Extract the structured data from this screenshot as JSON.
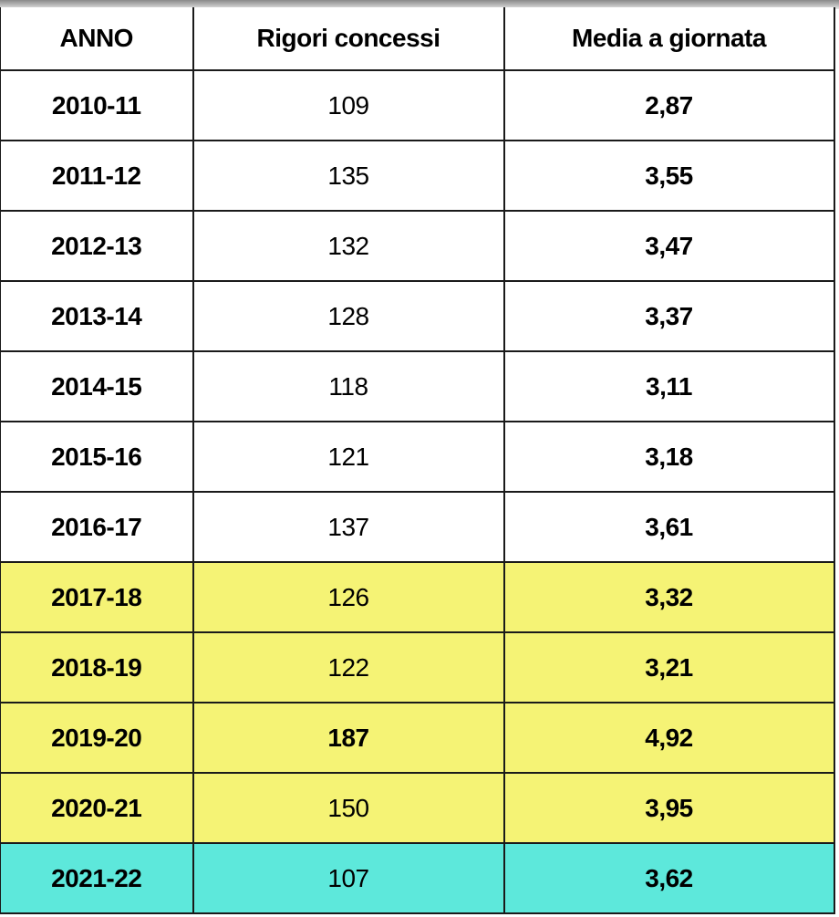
{
  "table": {
    "headers": [
      "ANNO",
      "Rigori concessi",
      "Media a giornata"
    ],
    "rows": [
      {
        "anno": "2010-11",
        "rigori": "109",
        "media": "2,87",
        "highlight": "none"
      },
      {
        "anno": "2011-12",
        "rigori": "135",
        "media": "3,55",
        "highlight": "none"
      },
      {
        "anno": "2012-13",
        "rigori": "132",
        "media": "3,47",
        "highlight": "none"
      },
      {
        "anno": "2013-14",
        "rigori": "128",
        "media": "3,37",
        "highlight": "none"
      },
      {
        "anno": "2014-15",
        "rigori": "118",
        "media": "3,11",
        "highlight": "none"
      },
      {
        "anno": "2015-16",
        "rigori": "121",
        "media": "3,18",
        "highlight": "none"
      },
      {
        "anno": "2016-17",
        "rigori": "137",
        "media": "3,61",
        "highlight": "none"
      },
      {
        "anno": "2017-18",
        "rigori": "126",
        "media": "3,32",
        "highlight": "yellow"
      },
      {
        "anno": "2018-19",
        "rigori": "122",
        "media": "3,21",
        "highlight": "yellow"
      },
      {
        "anno": "2019-20",
        "rigori": "187",
        "media": "4,92",
        "highlight": "yellow",
        "rigori_bold": true
      },
      {
        "anno": "2020-21",
        "rigori": "150",
        "media": "3,95",
        "highlight": "yellow"
      },
      {
        "anno": "2021-22",
        "rigori": "107",
        "media": "3,62",
        "highlight": "cyan"
      }
    ]
  },
  "colors": {
    "yellow": "#f5f375",
    "cyan": "#5de8db",
    "border": "#1a1a1a"
  }
}
